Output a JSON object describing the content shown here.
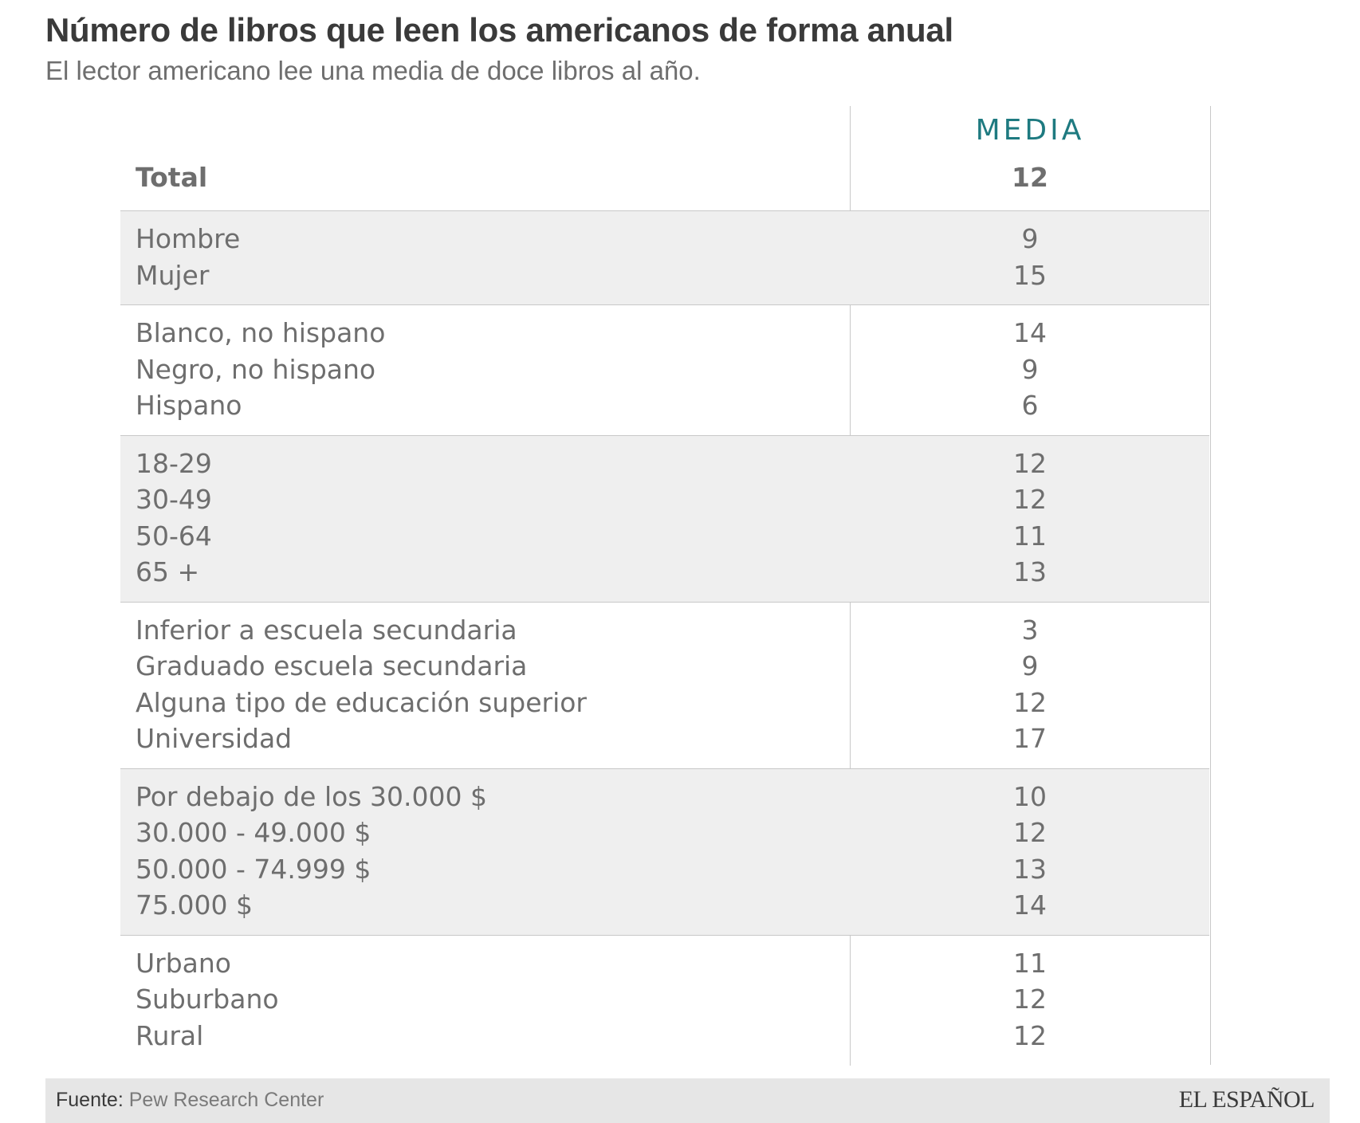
{
  "title": "Número de libros que leen los americanos de forma anual",
  "subtitle": "El lector americano lee una media de doce libros al año.",
  "chart_data": {
    "type": "table",
    "column_header": "MEDIA",
    "total": {
      "label": "Total",
      "value": 12
    },
    "groups": [
      {
        "shaded": true,
        "rows": [
          {
            "label": "Hombre",
            "value": 9
          },
          {
            "label": "Mujer",
            "value": 15
          }
        ]
      },
      {
        "shaded": false,
        "rows": [
          {
            "label": "Blanco, no hispano",
            "value": 14
          },
          {
            "label": "Negro, no hispano",
            "value": 9
          },
          {
            "label": "Hispano",
            "value": 6
          }
        ]
      },
      {
        "shaded": true,
        "rows": [
          {
            "label": "18-29",
            "value": 12
          },
          {
            "label": "30-49",
            "value": 12
          },
          {
            "label": "50-64",
            "value": 11
          },
          {
            "label": "65 +",
            "value": 13
          }
        ]
      },
      {
        "shaded": false,
        "rows": [
          {
            "label": "Inferior a escuela secundaria",
            "value": 3
          },
          {
            "label": "Graduado escuela secundaria",
            "value": 9
          },
          {
            "label": "Alguna tipo de educación superior",
            "value": 12
          },
          {
            "label": "Universidad",
            "value": 17
          }
        ]
      },
      {
        "shaded": true,
        "rows": [
          {
            "label": "Por debajo de los 30.000 $",
            "value": 10
          },
          {
            "label": "30.000 - 49.000 $",
            "value": 12
          },
          {
            "label": "50.000 - 74.999 $",
            "value": 13
          },
          {
            "label": "75.000 $",
            "value": 14
          }
        ]
      },
      {
        "shaded": false,
        "rows": [
          {
            "label": "Urbano",
            "value": 11
          },
          {
            "label": "Suburbano",
            "value": 12
          },
          {
            "label": "Rural",
            "value": 12
          }
        ]
      }
    ]
  },
  "footer": {
    "source_key": "Fuente:",
    "source_value": "Pew Research Center",
    "logo": "EL ESPAÑOL"
  },
  "colors": {
    "header_accent": "#1e7a80",
    "shaded_band": "#efefef",
    "text": "#6e6e6e",
    "footer_bg": "#e6e6e6"
  }
}
